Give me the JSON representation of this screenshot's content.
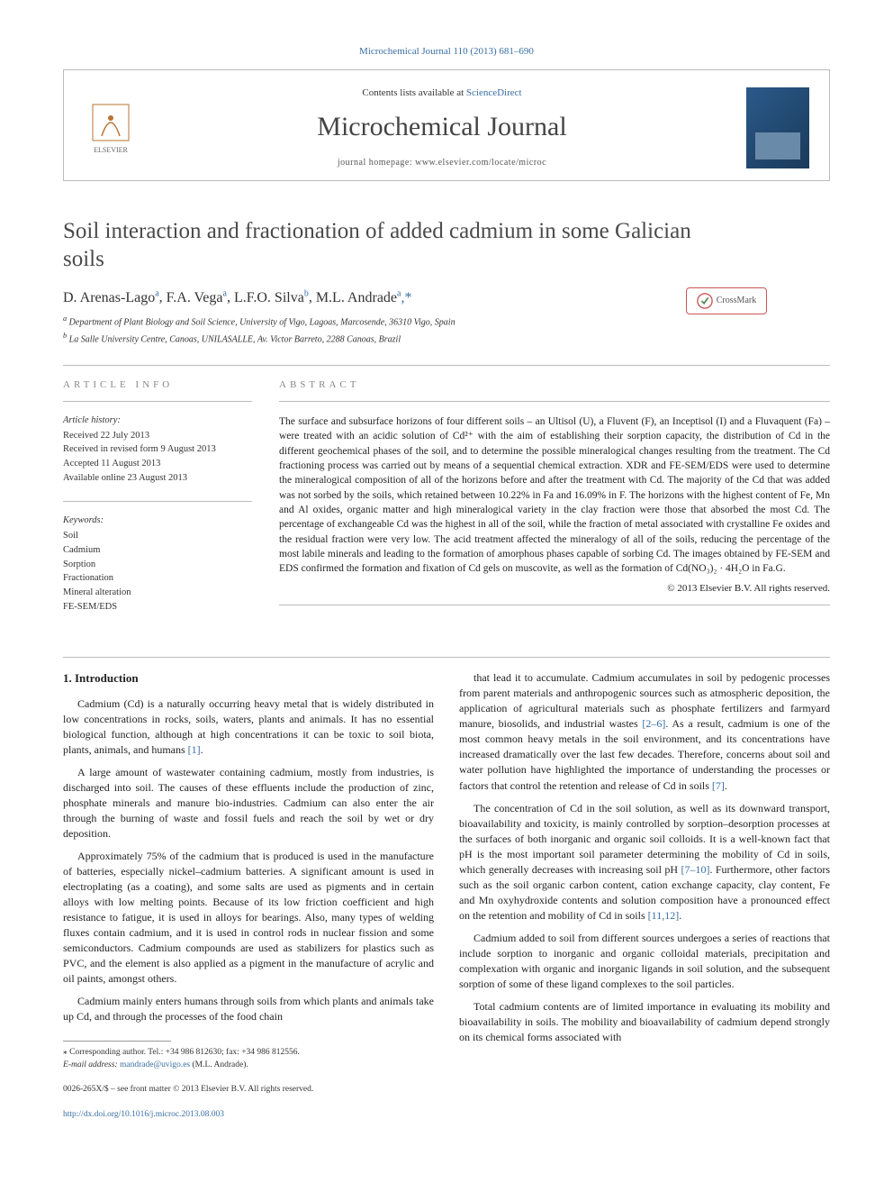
{
  "top_citation": "Microchemical Journal 110 (2013) 681–690",
  "header": {
    "contents_prefix": "Contents lists available at ",
    "contents_link": "ScienceDirect",
    "journal_name": "Microchemical Journal",
    "homepage_label": "journal homepage: www.elsevier.com/locate/microc",
    "publisher": "ELSEVIER"
  },
  "crossmark_label": "CrossMark",
  "title": "Soil interaction and fractionation of added cadmium in some Galician soils",
  "authors_html": "D. Arenas-Lago ᵃ, F.A. Vega ᵃ, L.F.O. Silva ᵇ, M.L. Andrade ᵃ٭",
  "authors": [
    {
      "name": "D. Arenas-Lago",
      "aff": "a"
    },
    {
      "name": "F.A. Vega",
      "aff": "a"
    },
    {
      "name": "L.F.O. Silva",
      "aff": "b"
    },
    {
      "name": "M.L. Andrade",
      "aff": "a",
      "corr": true
    }
  ],
  "affiliations": {
    "a": "Department of Plant Biology and Soil Science, University of Vigo, Lagoas, Marcosende, 36310 Vigo, Spain",
    "b": "La Salle University Centre, Canoas, UNILASALLE, Av. Victor Barreto, 2288 Canoas, Brazil"
  },
  "info": {
    "label": "ARTICLE INFO",
    "history_heading": "Article history:",
    "history": [
      "Received 22 July 2013",
      "Received in revised form 9 August 2013",
      "Accepted 11 August 2013",
      "Available online 23 August 2013"
    ],
    "keywords_heading": "Keywords:",
    "keywords": [
      "Soil",
      "Cadmium",
      "Sorption",
      "Fractionation",
      "Mineral alteration",
      "FE-SEM/EDS"
    ]
  },
  "abstract": {
    "label": "ABSTRACT",
    "text": "The surface and subsurface horizons of four different soils – an Ultisol (U), a Fluvent (F), an Inceptisol (I) and a Fluvaquent (Fa) – were treated with an acidic solution of Cd²⁺ with the aim of establishing their sorption capacity, the distribution of Cd in the different geochemical phases of the soil, and to determine the possible mineralogical changes resulting from the treatment. The Cd fractioning process was carried out by means of a sequential chemical extraction. XDR and FE-SEM/EDS were used to determine the mineralogical composition of all of the horizons before and after the treatment with Cd. The majority of the Cd that was added was not sorbed by the soils, which retained between 10.22% in Fa and 16.09% in F. The horizons with the highest content of Fe, Mn and Al oxides, organic matter and high mineralogical variety in the clay fraction were those that absorbed the most Cd. The percentage of exchangeable Cd was the highest in all of the soil, while the fraction of metal associated with crystalline Fe oxides and the residual fraction were very low. The acid treatment affected the mineralogy of all of the soils, reducing the percentage of the most labile minerals and leading to the formation of amorphous phases capable of sorbing Cd. The images obtained by FE-SEM and EDS confirmed the formation and fixation of Cd gels on muscovite, as well as the formation of Cd(NO₃)₂ · 4H₂O in Fa.G.",
    "copyright": "© 2013 Elsevier B.V. All rights reserved."
  },
  "body": {
    "heading": "1. Introduction",
    "left_paras": [
      "Cadmium (Cd) is a naturally occurring heavy metal that is widely distributed in low concentrations in rocks, soils, waters, plants and animals. It has no essential biological function, although at high concentrations it can be toxic to soil biota, plants, animals, and humans [1].",
      "A large amount of wastewater containing cadmium, mostly from industries, is discharged into soil. The causes of these effluents include the production of zinc, phosphate minerals and manure bio-industries. Cadmium can also enter the air through the burning of waste and fossil fuels and reach the soil by wet or dry deposition.",
      "Approximately 75% of the cadmium that is produced is used in the manufacture of batteries, especially nickel–cadmium batteries. A significant amount is used in electroplating (as a coating), and some salts are used as pigments and in certain alloys with low melting points. Because of its low friction coefficient and high resistance to fatigue, it is used in alloys for bearings. Also, many types of welding fluxes contain cadmium, and it is used in control rods in nuclear fission and some semiconductors. Cadmium compounds are used as stabilizers for plastics such as PVC, and the element is also applied as a pigment in the manufacture of acrylic and oil paints, amongst others.",
      "Cadmium mainly enters humans through soils from which plants and animals take up Cd, and through the processes of the food chain"
    ],
    "right_paras": [
      "that lead it to accumulate. Cadmium accumulates in soil by pedogenic processes from parent materials and anthropogenic sources such as atmospheric deposition, the application of agricultural materials such as phosphate fertilizers and farmyard manure, biosolids, and industrial wastes [2–6]. As a result, cadmium is one of the most common heavy metals in the soil environment, and its concentrations have increased dramatically over the last few decades. Therefore, concerns about soil and water pollution have highlighted the importance of understanding the processes or factors that control the retention and release of Cd in soils [7].",
      "The concentration of Cd in the soil solution, as well as its downward transport, bioavailability and toxicity, is mainly controlled by sorption–desorption processes at the surfaces of both inorganic and organic soil colloids. It is a well-known fact that pH is the most important soil parameter determining the mobility of Cd in soils, which generally decreases with increasing soil pH [7–10]. Furthermore, other factors such as the soil organic carbon content, cation exchange capacity, clay content, Fe and Mn oxyhydroxide contents and solution composition have a pronounced effect on the retention and mobility of Cd in soils [11,12].",
      "Cadmium added to soil from different sources undergoes a series of reactions that include sorption to inorganic and organic colloidal materials, precipitation and complexation with organic and inorganic ligands in soil solution, and the subsequent sorption of some of these ligand complexes to the soil particles.",
      "Total cadmium contents are of limited importance in evaluating its mobility and bioavailability in soils. The mobility and bioavailability of cadmium depend strongly on its chemical forms associated with"
    ]
  },
  "footnote": {
    "corr": "⁎ Corresponding author. Tel.: +34 986 812630; fax: +34 986 812556.",
    "email_label": "E-mail address:",
    "email": "mandrade@uvigo.es",
    "email_who": "(M.L. Andrade)."
  },
  "footer": {
    "line1": "0026-265X/$ – see front matter © 2013 Elsevier B.V. All rights reserved.",
    "doi": "http://dx.doi.org/10.1016/j.microc.2013.08.003"
  },
  "colors": {
    "link": "#3a6ea5",
    "text": "#222222",
    "rule": "#bbbbbb",
    "muted": "#888888"
  }
}
